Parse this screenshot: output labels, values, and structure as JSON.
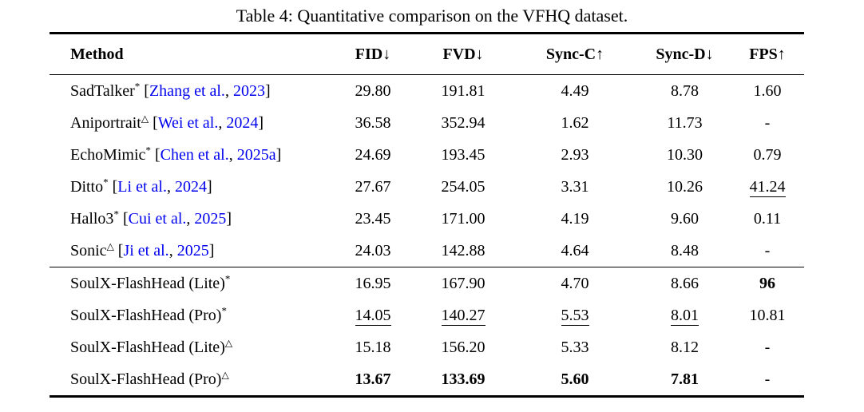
{
  "caption": "Table 4: Quantitative comparison on the VFHQ dataset.",
  "colors": {
    "citation_link": "#0000EE",
    "text": "#000000",
    "rule": "#000000"
  },
  "citation_format": {
    "open": "[",
    "separator": ", ",
    "close": "]"
  },
  "table": {
    "columns": [
      {
        "label": "Method",
        "arrow": ""
      },
      {
        "label": "FID",
        "arrow": "↓"
      },
      {
        "label": "FVD",
        "arrow": "↓"
      },
      {
        "label": "Sync-C",
        "arrow": "↑"
      },
      {
        "label": "Sync-D",
        "arrow": "↓"
      },
      {
        "label": "FPS",
        "arrow": "↑"
      }
    ],
    "groups": [
      {
        "name": "baselines",
        "rows": [
          {
            "method": "SadTalker",
            "sup": "*",
            "citation": {
              "author": "Zhang et al.",
              "year": "2023"
            },
            "values": [
              {
                "text": "29.80",
                "style": "normal"
              },
              {
                "text": "191.81",
                "style": "normal"
              },
              {
                "text": "4.49",
                "style": "normal"
              },
              {
                "text": "8.78",
                "style": "normal"
              },
              {
                "text": "1.60",
                "style": "normal"
              }
            ]
          },
          {
            "method": "Aniportrait",
            "sup": "△",
            "citation": {
              "author": "Wei et al.",
              "year": "2024"
            },
            "values": [
              {
                "text": "36.58",
                "style": "normal"
              },
              {
                "text": "352.94",
                "style": "normal"
              },
              {
                "text": "1.62",
                "style": "normal"
              },
              {
                "text": "11.73",
                "style": "normal"
              },
              {
                "text": "-",
                "style": "normal"
              }
            ]
          },
          {
            "method": "EchoMimic",
            "sup": "*",
            "citation": {
              "author": "Chen et al.",
              "year": "2025a"
            },
            "values": [
              {
                "text": "24.69",
                "style": "normal"
              },
              {
                "text": "193.45",
                "style": "normal"
              },
              {
                "text": "2.93",
                "style": "normal"
              },
              {
                "text": "10.30",
                "style": "normal"
              },
              {
                "text": "0.79",
                "style": "normal"
              }
            ]
          },
          {
            "method": "Ditto",
            "sup": "*",
            "citation": {
              "author": "Li et al.",
              "year": "2024"
            },
            "values": [
              {
                "text": "27.67",
                "style": "normal"
              },
              {
                "text": "254.05",
                "style": "normal"
              },
              {
                "text": "3.31",
                "style": "normal"
              },
              {
                "text": "10.26",
                "style": "normal"
              },
              {
                "text": "41.24",
                "style": "underline"
              }
            ]
          },
          {
            "method": "Hallo3",
            "sup": "*",
            "citation": {
              "author": "Cui et al.",
              "year": "2025"
            },
            "values": [
              {
                "text": "23.45",
                "style": "normal"
              },
              {
                "text": "171.00",
                "style": "normal"
              },
              {
                "text": "4.19",
                "style": "normal"
              },
              {
                "text": "9.60",
                "style": "normal"
              },
              {
                "text": "0.11",
                "style": "normal"
              }
            ]
          },
          {
            "method": "Sonic",
            "sup": "△",
            "citation": {
              "author": "Ji et al.",
              "year": "2025"
            },
            "values": [
              {
                "text": "24.03",
                "style": "normal"
              },
              {
                "text": "142.88",
                "style": "normal"
              },
              {
                "text": "4.64",
                "style": "normal"
              },
              {
                "text": "8.48",
                "style": "normal"
              },
              {
                "text": "-",
                "style": "normal"
              }
            ]
          }
        ]
      },
      {
        "name": "ours",
        "rows": [
          {
            "method": "SoulX-FlashHead (Lite)",
            "sup": "*",
            "citation": null,
            "values": [
              {
                "text": "16.95",
                "style": "normal"
              },
              {
                "text": "167.90",
                "style": "normal"
              },
              {
                "text": "4.70",
                "style": "normal"
              },
              {
                "text": "8.66",
                "style": "normal"
              },
              {
                "text": "96",
                "style": "bold"
              }
            ]
          },
          {
            "method": "SoulX-FlashHead (Pro)",
            "sup": "*",
            "citation": null,
            "values": [
              {
                "text": "14.05",
                "style": "underline"
              },
              {
                "text": "140.27",
                "style": "underline"
              },
              {
                "text": "5.53",
                "style": "underline"
              },
              {
                "text": "8.01",
                "style": "underline"
              },
              {
                "text": "10.81",
                "style": "normal"
              }
            ]
          },
          {
            "method": "SoulX-FlashHead (Lite)",
            "sup": "△",
            "citation": null,
            "values": [
              {
                "text": "15.18",
                "style": "normal"
              },
              {
                "text": "156.20",
                "style": "normal"
              },
              {
                "text": "5.33",
                "style": "normal"
              },
              {
                "text": "8.12",
                "style": "normal"
              },
              {
                "text": "-",
                "style": "normal"
              }
            ]
          },
          {
            "method": "SoulX-FlashHead (Pro)",
            "sup": "△",
            "citation": null,
            "values": [
              {
                "text": "13.67",
                "style": "bold"
              },
              {
                "text": "133.69",
                "style": "bold"
              },
              {
                "text": "5.60",
                "style": "bold"
              },
              {
                "text": "7.81",
                "style": "bold"
              },
              {
                "text": "-",
                "style": "normal"
              }
            ]
          }
        ]
      }
    ]
  }
}
